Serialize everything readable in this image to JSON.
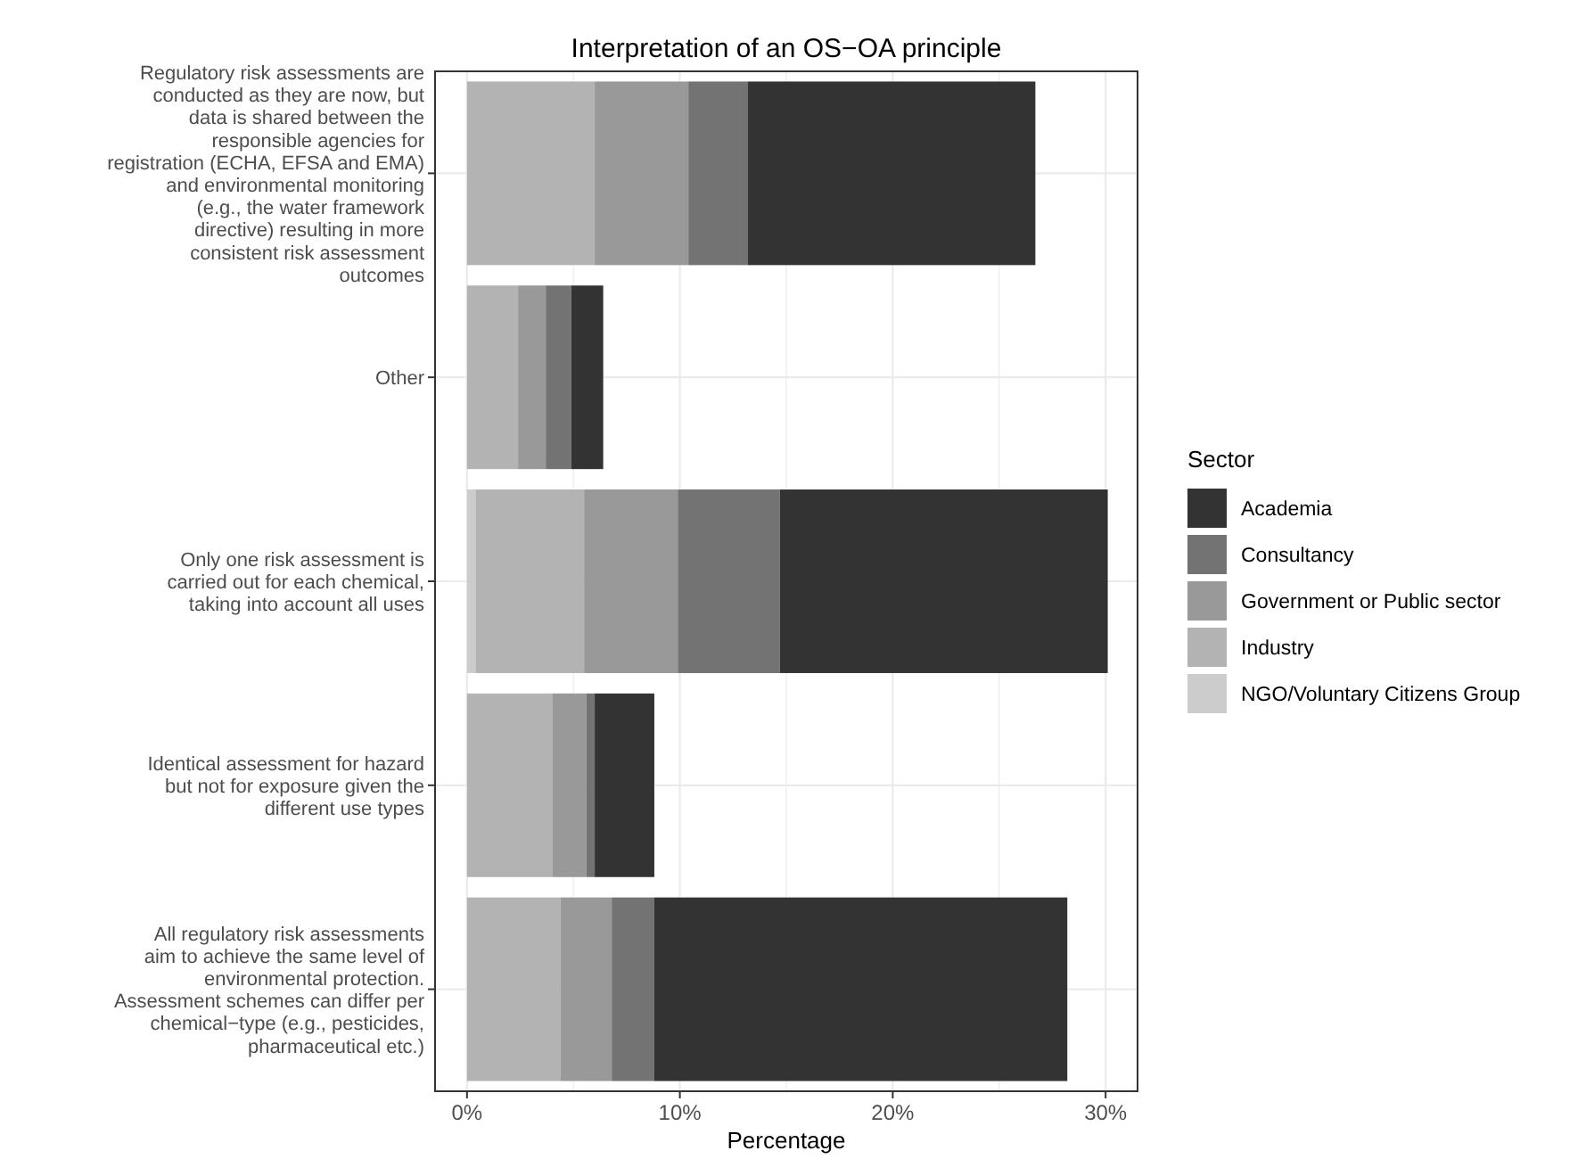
{
  "chart_data": {
    "type": "bar",
    "orientation": "horizontal",
    "stacked": true,
    "title": "Interpretation of an OS−OA principle",
    "xlabel": "Percentage",
    "legend_title": "Sector",
    "legend": "right",
    "grid": true,
    "categories": [
      "Regulatory risk assessments are\nconducted as they are now, but\ndata is shared between the\nresponsible agencies for\nregistration (ECHA, EFSA and EMA)\nand environmental monitoring\n(e.g., the water framework\ndirective) resulting in more\nconsistent risk assessment\noutcomes",
      "Other",
      "Only one risk assessment is\ncarried out for each chemical,\ntaking into account all uses",
      "Identical assessment for hazard\nbut not for exposure given the\ndifferent use types",
      "All regulatory risk assessments\naim to achieve the same level of\nenvironmental protection.\nAssessment schemes can differ per\nchemical−type (e.g., pesticides,\npharmaceutical etc.)"
    ],
    "series": [
      {
        "name": "NGO/Voluntary Citizens Group",
        "color": "#cccccc",
        "values": [
          0,
          0,
          0.4,
          0,
          0
        ]
      },
      {
        "name": "Industry",
        "color": "#b3b3b3",
        "values": [
          6.0,
          2.4,
          5.1,
          4.0,
          4.4
        ]
      },
      {
        "name": "Government or Public sector",
        "color": "#999999",
        "values": [
          4.4,
          1.3,
          4.4,
          1.6,
          2.4
        ]
      },
      {
        "name": "Consultancy",
        "color": "#737373",
        "values": [
          2.8,
          1.2,
          4.8,
          0.4,
          2.0
        ]
      },
      {
        "name": "Academia",
        "color": "#333333",
        "values": [
          13.5,
          1.5,
          15.4,
          2.8,
          19.4
        ]
      }
    ],
    "xlim": [
      -1.5,
      31.5
    ],
    "xticks": [
      {
        "value": 0,
        "label": "0%"
      },
      {
        "value": 10,
        "label": "10%"
      },
      {
        "value": 20,
        "label": "20%"
      },
      {
        "value": 30,
        "label": "30%"
      }
    ]
  }
}
